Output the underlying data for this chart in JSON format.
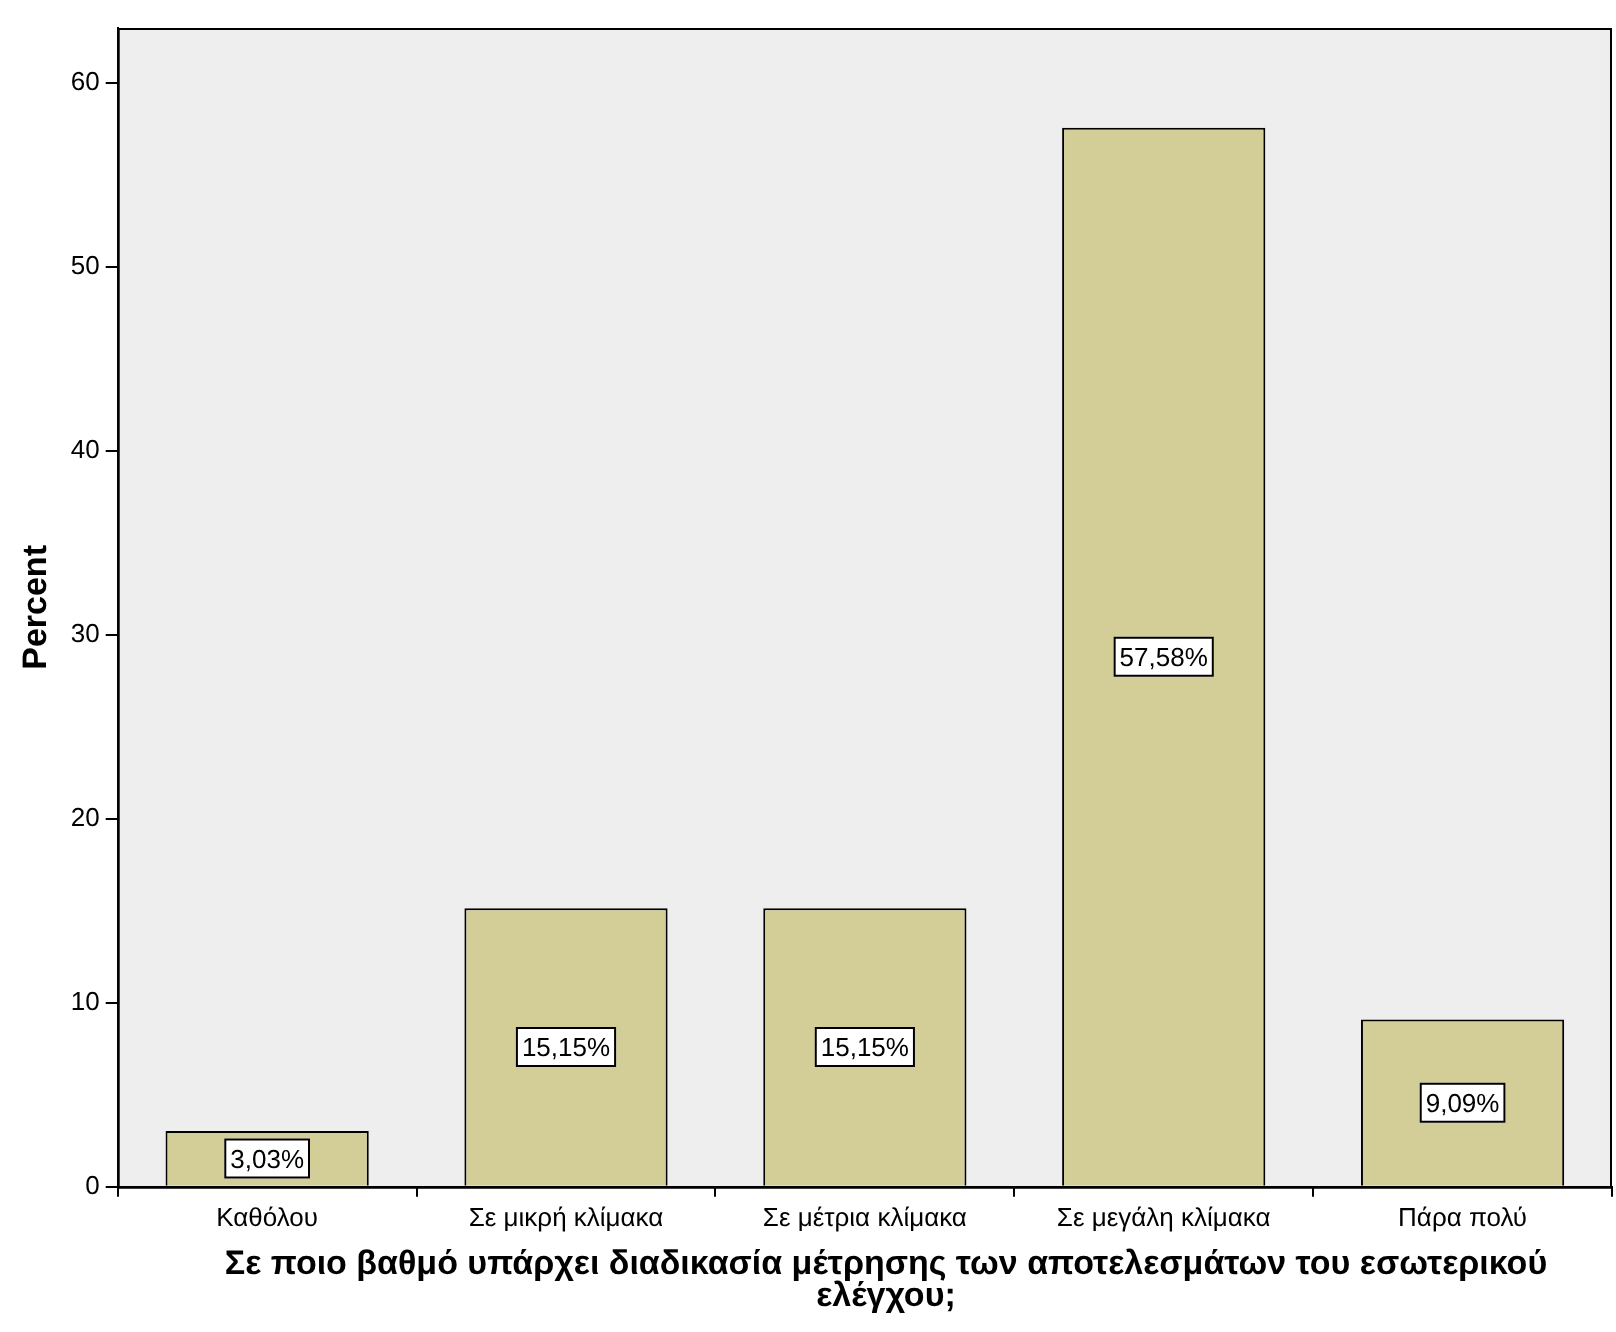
{
  "chart_data": {
    "type": "bar",
    "xlabel": "Σε ποιο βαθμό υπάρχει διαδικασία μέτρησης των αποτελεσμάτων του εσωτερικού ελέγχου;",
    "ylabel": "Percent",
    "categories": [
      "Καθόλου",
      "Σε μικρή κλίμακα",
      "Σε μέτρια κλίμακα",
      "Σε μεγάλη κλίμακα",
      "Πάρα πολύ"
    ],
    "values": [
      3.03,
      15.15,
      15.15,
      57.58,
      9.09
    ],
    "value_labels": [
      "3,03%",
      "15,15%",
      "15,15%",
      "57,58%",
      "9,09%"
    ],
    "color": "#d3ce97",
    "ylim": [
      0,
      63
    ],
    "yticks": [
      0,
      10,
      20,
      30,
      40,
      50,
      60
    ],
    "grid": false,
    "legend": false
  }
}
